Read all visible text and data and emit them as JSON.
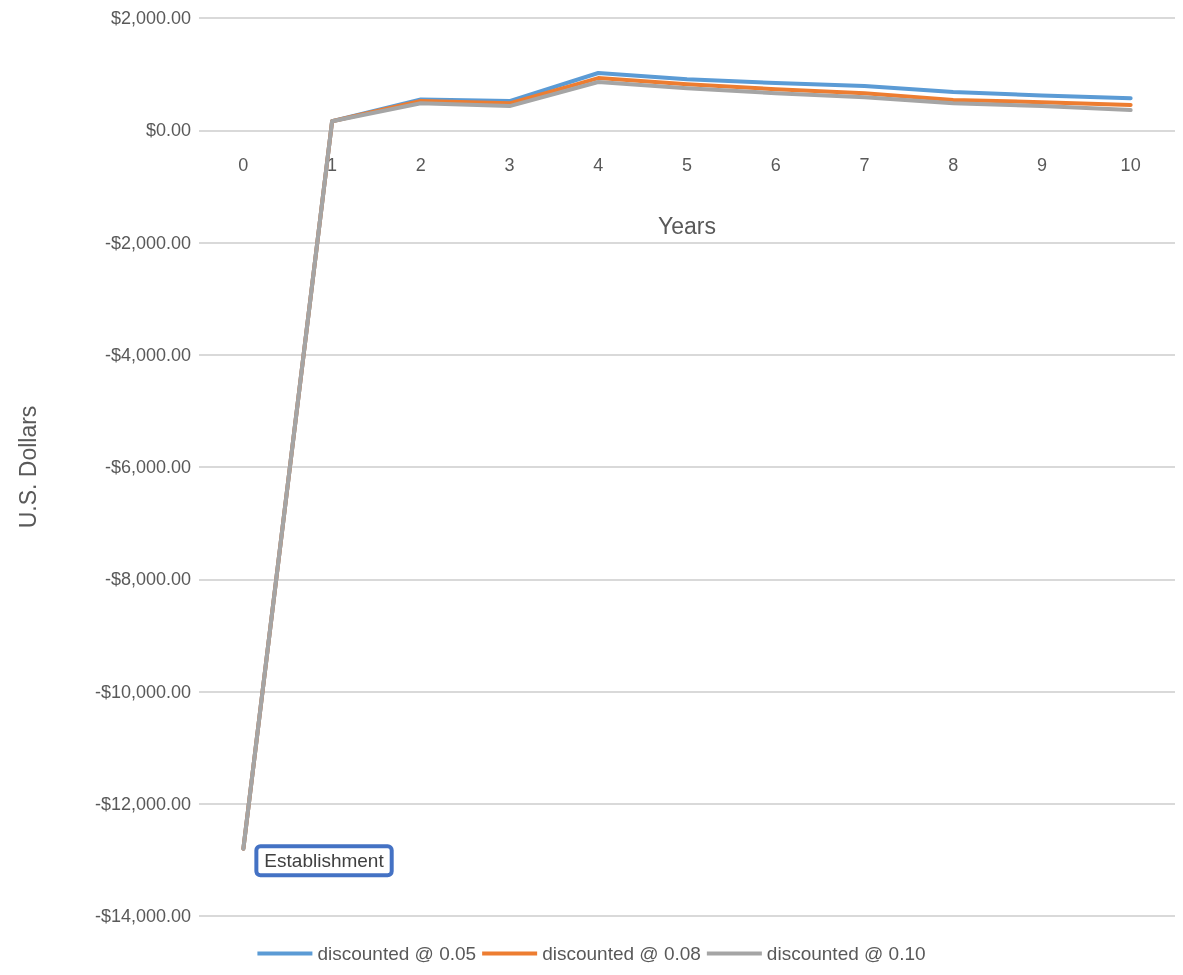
{
  "chart_data": {
    "type": "line",
    "xlabel": "Years",
    "ylabel": "U.S. Dollars",
    "categories": [
      "0",
      "1",
      "2",
      "3",
      "4",
      "5",
      "6",
      "7",
      "8",
      "9",
      "10"
    ],
    "series": [
      {
        "name": "discounted @ 0.05",
        "color": "#5b9bd5",
        "values": [
          -12800,
          160,
          550,
          520,
          1020,
          910,
          840,
          790,
          680,
          620,
          570
        ]
      },
      {
        "name": "discounted @ 0.08",
        "color": "#ed7d31",
        "values": [
          -12800,
          160,
          520,
          480,
          930,
          820,
          730,
          660,
          540,
          500,
          450
        ]
      },
      {
        "name": "discounted @ 0.10",
        "color": "#a5a5a5",
        "values": [
          -12800,
          160,
          480,
          430,
          860,
          750,
          660,
          590,
          480,
          430,
          360
        ]
      }
    ],
    "ylim": [
      -14000,
      2000
    ],
    "yticks": [
      {
        "value": -14000,
        "label": "-$14,000.00"
      },
      {
        "value": -12000,
        "label": "-$12,000.00"
      },
      {
        "value": -10000,
        "label": "-$10,000.00"
      },
      {
        "value": -8000,
        "label": "-$8,000.00"
      },
      {
        "value": -6000,
        "label": "-$6,000.00"
      },
      {
        "value": -4000,
        "label": "-$4,000.00"
      },
      {
        "value": -2000,
        "label": "-$2,000.00"
      },
      {
        "value": 0,
        "label": "$0.00"
      },
      {
        "value": 2000,
        "label": "$2,000.00"
      }
    ],
    "annotations": [
      {
        "text": "Establishment",
        "x": "0",
        "y": -12800
      }
    ],
    "grid": "y",
    "legend": "bottom",
    "marker": "none",
    "line_style": "solid"
  }
}
